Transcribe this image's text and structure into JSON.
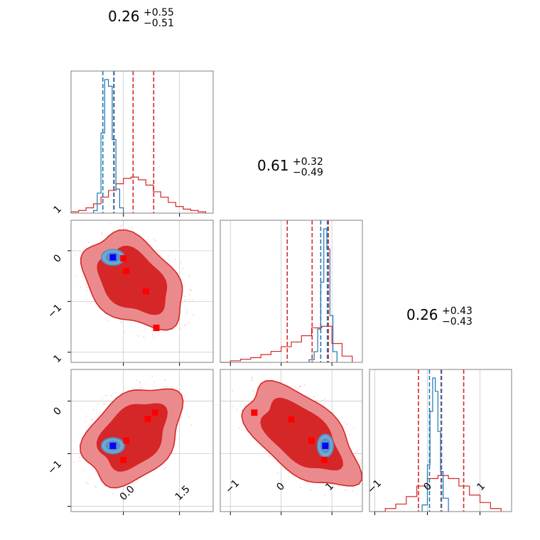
{
  "colors": {
    "red": "#d62728",
    "red_mid": "#eb8a8c",
    "red_light": "#f6cfd0",
    "blue": "#1f77b4",
    "blue_mid": "#4f95c9",
    "square_blue": "#0000ff",
    "square_red": "#ff0000"
  },
  "titles": [
    {
      "main": "0.26",
      "plus": "+0.55",
      "minus": "−0.51"
    },
    {
      "main": "0.61",
      "plus": "+0.32",
      "minus": "−0.49"
    },
    {
      "main": "0.26",
      "plus": "+0.43",
      "minus": "−0.43"
    }
  ],
  "ticks": {
    "p1": [
      "0.0",
      "1.5"
    ],
    "p2": [
      "−1",
      "0",
      "1"
    ],
    "p3": [
      "−1",
      "0",
      "1"
    ]
  },
  "chart_data": {
    "type": "corner",
    "parameters": 3,
    "ranges": {
      "p1": [
        -1.4,
        2.4
      ],
      "p2": [
        -1.2,
        1.6
      ],
      "p3": [
        -1.1,
        1.6
      ]
    },
    "hist": [
      {
        "param": "p1",
        "red_quantiles": [
          -0.25,
          0.26,
          0.81
        ],
        "blue_quantiles": [
          -0.55,
          -0.26
        ],
        "red_hist": {
          "x": [
            -1.4,
            -1.2,
            -1.0,
            -0.8,
            -0.6,
            -0.4,
            -0.2,
            0.0,
            0.2,
            0.4,
            0.6,
            0.8,
            1.0,
            1.2,
            1.4,
            1.6,
            1.8,
            2.0,
            2.2
          ],
          "y": [
            0.01,
            0.02,
            0.04,
            0.07,
            0.12,
            0.17,
            0.22,
            0.26,
            0.27,
            0.25,
            0.21,
            0.16,
            0.12,
            0.08,
            0.05,
            0.03,
            0.02,
            0.01,
            0.0
          ]
        },
        "blue_hist": {
          "x": [
            -0.8,
            -0.7,
            -0.6,
            -0.5,
            -0.4,
            -0.3,
            -0.2,
            -0.1,
            0.0
          ],
          "y": [
            0.02,
            0.15,
            0.6,
            1.0,
            0.95,
            0.55,
            0.18,
            0.04,
            0.0
          ]
        }
      },
      {
        "param": "p2",
        "red_quantiles": [
          0.12,
          0.61,
          0.93
        ],
        "blue_quantiles": [
          0.78,
          0.91
        ],
        "red_hist": {
          "x": [
            -1.2,
            -1.0,
            -0.8,
            -0.6,
            -0.4,
            -0.2,
            0.0,
            0.2,
            0.4,
            0.6,
            0.8,
            1.0,
            1.2,
            1.4
          ],
          "y": [
            0.0,
            0.01,
            0.02,
            0.03,
            0.05,
            0.07,
            0.1,
            0.13,
            0.17,
            0.22,
            0.23,
            0.12,
            0.04,
            0.01
          ]
        },
        "blue_hist": {
          "x": [
            0.55,
            0.65,
            0.72,
            0.78,
            0.84,
            0.9,
            0.96,
            1.02,
            1.1
          ],
          "y": [
            0.02,
            0.08,
            0.25,
            0.6,
            1.0,
            0.85,
            0.35,
            0.08,
            0.02
          ]
        }
      },
      {
        "param": "p3",
        "red_quantiles": [
          -0.17,
          0.26,
          0.69
        ],
        "blue_quantiles": [
          0.04,
          0.27
        ],
        "red_hist": {
          "x": [
            -1.0,
            -0.8,
            -0.6,
            -0.4,
            -0.2,
            0.0,
            0.2,
            0.4,
            0.6,
            0.8,
            1.0,
            1.2,
            1.4
          ],
          "y": [
            0.0,
            0.02,
            0.05,
            0.1,
            0.17,
            0.22,
            0.24,
            0.22,
            0.17,
            0.11,
            0.06,
            0.02,
            0.0
          ]
        },
        "blue_hist": {
          "x": [
            -0.1,
            0.0,
            0.05,
            0.1,
            0.15,
            0.2,
            0.25,
            0.3,
            0.4
          ],
          "y": [
            0.05,
            0.35,
            0.75,
            1.0,
            0.9,
            0.6,
            0.3,
            0.1,
            0.02
          ]
        }
      }
    ],
    "scatter_panels": [
      {
        "x": "p1",
        "y": "p2",
        "blue_square": [
          -0.28,
          0.87
        ],
        "red_squares": [
          [
            0.0,
            0.85
          ],
          [
            0.08,
            0.6
          ],
          [
            0.6,
            0.2
          ],
          [
            0.88,
            -0.52
          ]
        ]
      },
      {
        "x": "p1",
        "y": "p3",
        "blue_square": [
          -0.28,
          0.15
        ],
        "red_squares": [
          [
            0.65,
            0.66
          ],
          [
            0.85,
            0.78
          ],
          [
            0.08,
            0.25
          ],
          [
            0.0,
            -0.12
          ]
        ]
      },
      {
        "x": "p2",
        "y": "p3",
        "blue_square": [
          0.87,
          0.15
        ],
        "red_squares": [
          [
            -0.53,
            0.78
          ],
          [
            0.2,
            0.65
          ],
          [
            0.6,
            0.25
          ],
          [
            0.85,
            -0.12
          ]
        ]
      }
    ]
  }
}
